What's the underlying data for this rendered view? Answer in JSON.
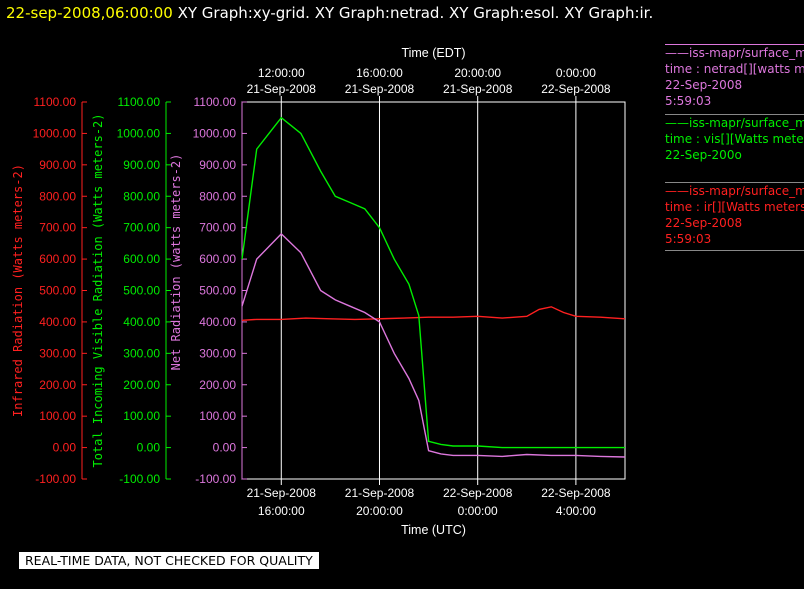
{
  "header": {
    "timestamp": "22-sep-2008,06:00:00",
    "graphs": [
      "XY Graph:xy-grid.",
      "XY Graph:netrad.",
      "XY Graph:esol.",
      "XY Graph:ir."
    ]
  },
  "notice": "REAL-TIME DATA, NOT CHECKED FOR QUALITY",
  "legend": [
    {
      "name": "——iss-mapr/surface_m",
      "line2": "time : netrad[][watts m",
      "line3": "22-Sep-2008",
      "line4": "5:59:03",
      "color": "#dd77dd"
    },
    {
      "name": "——iss-mapr/surface_m",
      "line2": "time : vis[][Watts mete",
      "line3": "22-Sep-200o",
      "line4": "",
      "color": "#00ee00"
    },
    {
      "name": "——iss-mapr/surface_m",
      "line2": "time : ir[][Watts meters",
      "line3": "22-Sep-2008",
      "line4": "5:59:03",
      "color": "#ff2020"
    }
  ],
  "chart_data": {
    "type": "line",
    "title": "",
    "top_axis": {
      "label": "Time (EDT)",
      "ticks": [
        {
          "t1": "12:00:00",
          "t2": "21-Sep-2008"
        },
        {
          "t1": "16:00:00",
          "t2": "21-Sep-2008"
        },
        {
          "t1": "20:00:00",
          "t2": "21-Sep-2008"
        },
        {
          "t1": "0:00:00",
          "t2": "22-Sep-2008"
        }
      ]
    },
    "bottom_axis": {
      "label": "Time (UTC)",
      "ticks": [
        {
          "t1": "21-Sep-2008",
          "t2": "16:00:00"
        },
        {
          "t1": "21-Sep-2008",
          "t2": "20:00:00"
        },
        {
          "t1": "22-Sep-2008",
          "t2": "0:00:00"
        },
        {
          "t1": "22-Sep-2008",
          "t2": "4:00:00"
        }
      ],
      "range_hours_utc": [
        14.4,
        30.0
      ]
    },
    "y_axes": [
      {
        "label": "Infrared Radiation (Watts meters-2)",
        "color": "#ff2020",
        "ylim": [
          -100,
          1100
        ]
      },
      {
        "label": "Total Incoming Visible Radiation (Watts meters-2)",
        "color": "#00ee00",
        "ylim": [
          -100,
          1100
        ]
      },
      {
        "label": "Net Radiation (watts meters-2)",
        "color": "#dd77dd",
        "ylim": [
          -100,
          1100
        ]
      }
    ],
    "y_ticks": [
      "1100.00",
      "1000.00",
      "900.00",
      "800.00",
      "700.00",
      "600.00",
      "500.00",
      "400.00",
      "300.00",
      "200.00",
      "100.00",
      "0.00",
      "-100.00"
    ],
    "grid": true,
    "series": [
      {
        "key": "ir",
        "color": "#ff2020",
        "x": [
          14.4,
          15.0,
          16.0,
          17.0,
          18.0,
          19.0,
          20.0,
          21.0,
          22.0,
          23.0,
          24.0,
          25.0,
          26.0,
          26.5,
          27.0,
          27.5,
          28.0,
          29.0,
          30.0
        ],
        "y": [
          405,
          408,
          408,
          412,
          410,
          408,
          410,
          412,
          415,
          415,
          418,
          412,
          418,
          440,
          448,
          430,
          418,
          415,
          410
        ]
      },
      {
        "key": "vis",
        "color": "#00ee00",
        "x": [
          14.4,
          15.0,
          16.0,
          16.8,
          17.6,
          18.2,
          18.8,
          19.4,
          20.0,
          20.6,
          21.2,
          21.6,
          22.0,
          22.5,
          23.0,
          24.0,
          25.0,
          26.0,
          27.0,
          28.0,
          29.0,
          30.0
        ],
        "y": [
          600,
          950,
          1050,
          1000,
          880,
          800,
          780,
          760,
          700,
          600,
          520,
          420,
          20,
          10,
          5,
          5,
          0,
          0,
          0,
          0,
          0,
          0
        ]
      },
      {
        "key": "netrad",
        "color": "#dd77dd",
        "x": [
          14.4,
          15.0,
          16.0,
          16.8,
          17.6,
          18.2,
          18.8,
          19.4,
          20.0,
          20.6,
          21.2,
          21.6,
          22.0,
          22.5,
          23.0,
          24.0,
          25.0,
          26.0,
          27.0,
          28.0,
          29.0,
          30.0
        ],
        "y": [
          450,
          600,
          680,
          620,
          500,
          470,
          450,
          430,
          400,
          300,
          220,
          150,
          -10,
          -20,
          -25,
          -25,
          -28,
          -22,
          -25,
          -25,
          -28,
          -30
        ]
      }
    ]
  }
}
